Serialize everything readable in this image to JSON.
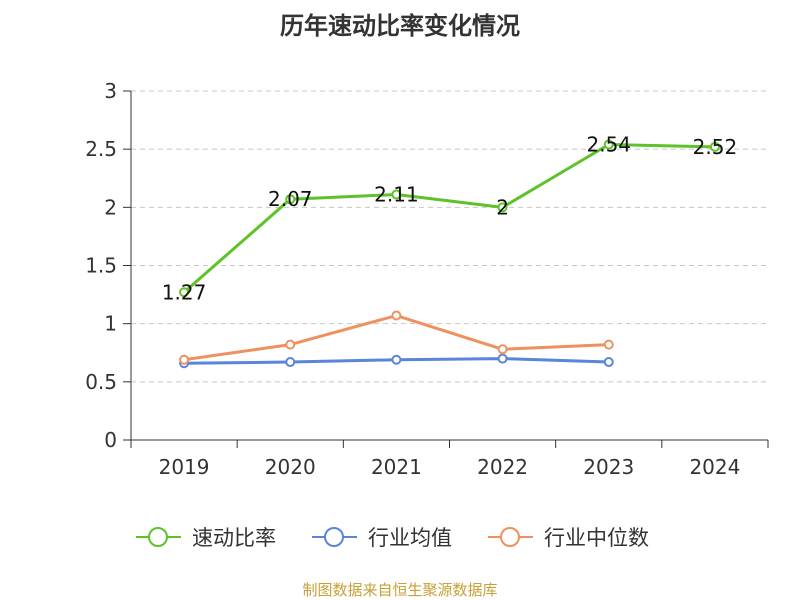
{
  "chart_data": {
    "type": "line",
    "title": "历年速动比率变化情况",
    "categories": [
      "2019",
      "2020",
      "2021",
      "2022",
      "2023",
      "2024"
    ],
    "ylim": [
      0,
      3
    ],
    "yticks": [
      "0",
      "0.5",
      "1",
      "1.5",
      "2",
      "2.5",
      "3"
    ],
    "grid": true,
    "legend_position": "bottom",
    "series": [
      {
        "name": "速动比率",
        "color": "#5ec229",
        "values": [
          1.27,
          2.07,
          2.11,
          2.0,
          2.54,
          2.52
        ],
        "labels": [
          "1.27",
          "2.07",
          "2.11",
          "2",
          "2.54",
          "2.52"
        ]
      },
      {
        "name": "行业均值",
        "color": "#5b85d9",
        "values": [
          0.66,
          0.67,
          0.69,
          0.7,
          0.67,
          null
        ]
      },
      {
        "name": "行业中位数",
        "color": "#f0905f",
        "values": [
          0.69,
          0.82,
          1.07,
          0.78,
          0.82,
          null
        ]
      }
    ]
  },
  "source": "制图数据来自恒生聚源数据库"
}
